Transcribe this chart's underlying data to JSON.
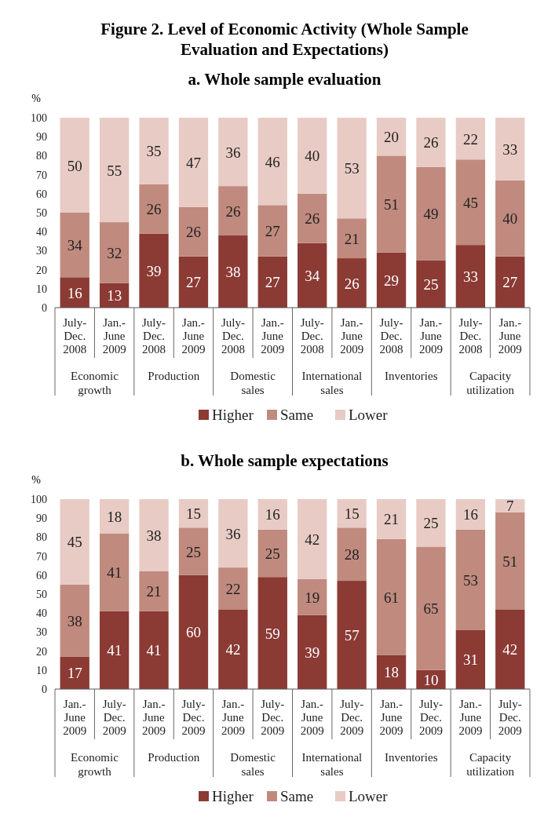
{
  "chart_data": [
    {
      "type": "bar",
      "stacked": true,
      "title": "Figure 2. Level of Economic Activity (Whole Sample Evaluation and Expectations)",
      "subtitle": "a. Whole sample evaluation",
      "ylabel": "%",
      "ylim": [
        0,
        100
      ],
      "yticks": [
        0,
        10,
        20,
        30,
        40,
        50,
        60,
        70,
        80,
        90,
        100
      ],
      "data_labels": true,
      "legend": "bottom",
      "categories": [
        "July-Dec. 2008",
        "Jan.-June 2009",
        "July-Dec. 2008",
        "Jan.-June 2009",
        "July-Dec. 2008",
        "Jan.-June 2009",
        "July-Dec. 2008",
        "Jan.-June 2009",
        "July-Dec. 2008",
        "Jan.-June 2009",
        "July-Dec. 2008",
        "Jan.-June 2009"
      ],
      "annotations": [
        "Economic growth",
        "Production",
        "Domestic sales",
        "International sales",
        "Inventories",
        "Capacity utilization"
      ],
      "series": [
        {
          "name": "Higher",
          "color": "#8b3a34",
          "values": [
            16,
            13,
            39,
            27,
            38,
            27,
            34,
            26,
            29,
            25,
            33,
            27
          ]
        },
        {
          "name": "Same",
          "color": "#c08a7e",
          "values": [
            34,
            32,
            26,
            26,
            26,
            27,
            26,
            21,
            51,
            49,
            45,
            40
          ]
        },
        {
          "name": "Lower",
          "color": "#e8cbc4",
          "values": [
            50,
            55,
            35,
            47,
            36,
            46,
            40,
            53,
            20,
            26,
            22,
            33
          ]
        }
      ]
    },
    {
      "type": "bar",
      "stacked": true,
      "title": "b. Whole sample expectations",
      "ylabel": "%",
      "ylim": [
        0,
        100
      ],
      "yticks": [
        0,
        10,
        20,
        30,
        40,
        50,
        60,
        70,
        80,
        90,
        100
      ],
      "data_labels": true,
      "legend": "bottom",
      "categories": [
        "Jan.-June 2009",
        "July-Dec. 2009",
        "Jan.-June 2009",
        "July-Dec. 2009",
        "Jan.-June 2009",
        "July-Dec. 2009",
        "Jan.-June 2009",
        "July-Dec. 2009",
        "Jan.-June 2009",
        "July-Dec. 2009",
        "Jan.-June 2009",
        "July-Dec. 2009"
      ],
      "annotations": [
        "Economic growth",
        "Production",
        "Domestic sales",
        "International sales",
        "Inventories",
        "Capacity utilization"
      ],
      "series": [
        {
          "name": "Higher",
          "color": "#8b3a34",
          "values": [
            17,
            41,
            41,
            60,
            42,
            59,
            39,
            57,
            18,
            10,
            31,
            42
          ]
        },
        {
          "name": "Same",
          "color": "#c08a7e",
          "values": [
            38,
            41,
            21,
            25,
            22,
            25,
            19,
            28,
            61,
            65,
            53,
            51
          ]
        },
        {
          "name": "Lower",
          "color": "#e8cbc4",
          "values": [
            45,
            18,
            38,
            15,
            36,
            16,
            42,
            15,
            21,
            25,
            16,
            7
          ]
        }
      ]
    }
  ]
}
